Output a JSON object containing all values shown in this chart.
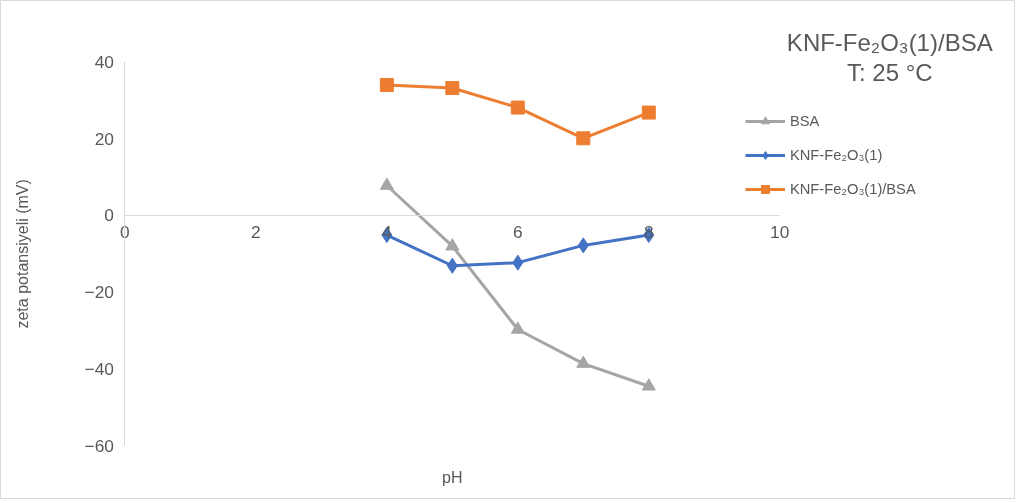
{
  "chart_data": {
    "type": "line",
    "title": "KNF-Fe₂O₃(1)/BSA",
    "subtitle": "T: 25 °C",
    "xlabel": "pH",
    "ylabel": "zeta potansiyeli (mV)",
    "xlim": [
      0,
      10
    ],
    "xticks": [
      0,
      2,
      4,
      6,
      8,
      10
    ],
    "ylim": [
      -60,
      40
    ],
    "yticks": [
      -60,
      -40,
      -20,
      0,
      20,
      40
    ],
    "grid": false,
    "legend": "right",
    "x": [
      4,
      5,
      6,
      7,
      8
    ],
    "series": [
      {
        "name": "BSA",
        "color": "#a5a5a5",
        "marker": "triangle",
        "values": [
          7.8,
          -8.0,
          -29.7,
          -38.6,
          -44.5
        ]
      },
      {
        "name": "KNF-Fe₂O₃(1)",
        "color": "#4472c4",
        "marker": "diamond",
        "values": [
          -5.1,
          -13.1,
          -12.3,
          -7.8,
          -5.1
        ]
      },
      {
        "name": "KNF-Fe₂O₃(1)/BSA",
        "color": "#ed7d31",
        "marker": "square",
        "values": [
          34.0,
          33.2,
          28.1,
          20.1,
          26.8
        ]
      }
    ]
  }
}
